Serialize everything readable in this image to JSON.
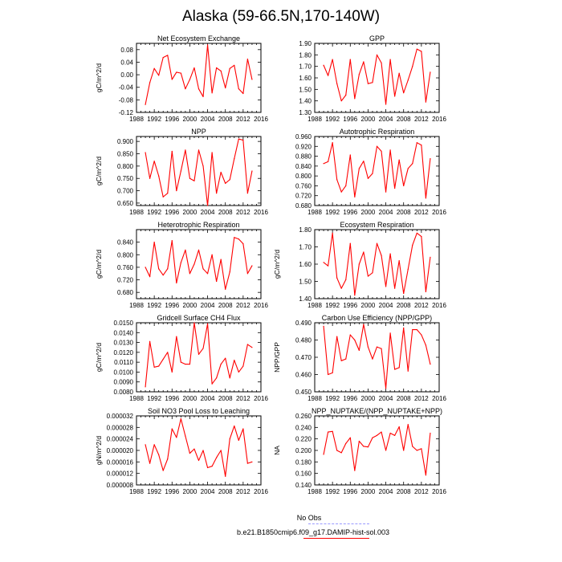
{
  "title": "Alaska (59-66.5N,170-140W)",
  "colors": {
    "model": "#ff0000",
    "obs": "#9999ff",
    "axis": "#000000"
  },
  "legend": {
    "obs_label": "No Obs",
    "model_label": "b.e21.B1850cmip6.f09_g17.DAMIP-hist-sol.003"
  },
  "chart_data": [
    {
      "type": "line",
      "title": "Net Ecosystem Exchange",
      "ylabel": "gC/m^2/d",
      "xlim": [
        1988,
        2016
      ],
      "xticks": [
        1988,
        1992,
        1996,
        2000,
        2004,
        2008,
        2012,
        2016
      ],
      "ylim": [
        -0.12,
        0.1
      ],
      "yticks": [
        "-0.12",
        "-0.08",
        "-0.04",
        "0.00",
        "0.04",
        "0.08"
      ],
      "x": [
        1990,
        1991,
        1992,
        1993,
        1994,
        1995,
        1996,
        1997,
        1998,
        1999,
        2000,
        2001,
        2002,
        2003,
        2004,
        2005,
        2006,
        2007,
        2008,
        2009,
        2010,
        2011,
        2012,
        2013,
        2014
      ],
      "series": [
        {
          "values": [
            -0.095,
            -0.025,
            0.02,
            -0.002,
            0.055,
            0.062,
            -0.015,
            0.008,
            0.005,
            -0.045,
            -0.015,
            0.022,
            -0.045,
            -0.07,
            0.095,
            -0.058,
            0.022,
            0.012,
            -0.042,
            0.02,
            0.03,
            -0.045,
            -0.06,
            0.05,
            -0.015
          ]
        }
      ]
    },
    {
      "type": "line",
      "title": "GPP",
      "ylabel": "",
      "xlim": [
        1988,
        2016
      ],
      "xticks": [
        1988,
        1992,
        1996,
        2000,
        2004,
        2008,
        2012,
        2016
      ],
      "ylim": [
        1.3,
        1.9
      ],
      "yticks": [
        "1.30",
        "1.40",
        "1.50",
        "1.60",
        "1.70",
        "1.80",
        "1.90"
      ],
      "x": [
        1990,
        1991,
        1992,
        1993,
        1994,
        1995,
        1996,
        1997,
        1998,
        1999,
        2000,
        2001,
        2002,
        2003,
        2004,
        2005,
        2006,
        2007,
        2008,
        2009,
        2010,
        2011,
        2012,
        2013,
        2014
      ],
      "series": [
        {
          "values": [
            1.71,
            1.62,
            1.76,
            1.55,
            1.4,
            1.45,
            1.76,
            1.42,
            1.63,
            1.74,
            1.55,
            1.56,
            1.8,
            1.73,
            1.37,
            1.76,
            1.44,
            1.64,
            1.47,
            1.58,
            1.7,
            1.85,
            1.83,
            1.39,
            1.65
          ]
        }
      ]
    },
    {
      "type": "line",
      "title": "NPP",
      "ylabel": "gC/m^2/d",
      "xlim": [
        1988,
        2016
      ],
      "xticks": [
        1988,
        1992,
        1996,
        2000,
        2004,
        2008,
        2012,
        2016
      ],
      "ylim": [
        0.64,
        0.92
      ],
      "yticks": [
        "0.650",
        "0.700",
        "0.750",
        "0.800",
        "0.850",
        "0.900"
      ],
      "x": [
        1990,
        1991,
        1992,
        1993,
        1994,
        1995,
        1996,
        1997,
        1998,
        1999,
        2000,
        2001,
        2002,
        2003,
        2004,
        2005,
        2006,
        2007,
        2008,
        2009,
        2010,
        2011,
        2012,
        2013,
        2014
      ],
      "series": [
        {
          "values": [
            0.855,
            0.75,
            0.82,
            0.76,
            0.675,
            0.69,
            0.86,
            0.7,
            0.78,
            0.865,
            0.75,
            0.74,
            0.865,
            0.8,
            0.64,
            0.855,
            0.69,
            0.775,
            0.73,
            0.745,
            0.83,
            0.91,
            0.905,
            0.69,
            0.78
          ]
        }
      ]
    },
    {
      "type": "line",
      "title": "Autotrophic Respiration",
      "ylabel": "",
      "xlim": [
        1988,
        2016
      ],
      "xticks": [
        1988,
        1992,
        1996,
        2000,
        2004,
        2008,
        2012,
        2016
      ],
      "ylim": [
        0.68,
        0.96
      ],
      "yticks": [
        "0.680",
        "0.720",
        "0.760",
        "0.800",
        "0.840",
        "0.880",
        "0.920",
        "0.960"
      ],
      "x": [
        1990,
        1991,
        1992,
        1993,
        1994,
        1995,
        1996,
        1997,
        1998,
        1999,
        2000,
        2001,
        2002,
        2003,
        2004,
        2005,
        2006,
        2007,
        2008,
        2009,
        2010,
        2011,
        2012,
        2013,
        2014
      ],
      "series": [
        {
          "values": [
            0.85,
            0.858,
            0.935,
            0.785,
            0.735,
            0.76,
            0.885,
            0.715,
            0.83,
            0.86,
            0.79,
            0.81,
            0.92,
            0.9,
            0.735,
            0.905,
            0.75,
            0.865,
            0.76,
            0.83,
            0.85,
            0.935,
            0.925,
            0.71,
            0.87
          ]
        }
      ]
    },
    {
      "type": "line",
      "title": "Heterotrophic Respiration",
      "ylabel": "gC/m^2/d",
      "xlim": [
        1988,
        2016
      ],
      "xticks": [
        1988,
        1992,
        1996,
        2000,
        2004,
        2008,
        2012,
        2016
      ],
      "ylim": [
        0.66,
        0.88
      ],
      "yticks": [
        "0.680",
        "0.720",
        "0.760",
        "0.800",
        "0.840"
      ],
      "x": [
        1990,
        1991,
        1992,
        1993,
        1994,
        1995,
        1996,
        1997,
        1998,
        1999,
        2000,
        2001,
        2002,
        2003,
        2004,
        2005,
        2006,
        2007,
        2008,
        2009,
        2010,
        2011,
        2012,
        2013,
        2014
      ],
      "series": [
        {
          "values": [
            0.76,
            0.73,
            0.84,
            0.755,
            0.735,
            0.755,
            0.845,
            0.71,
            0.775,
            0.815,
            0.74,
            0.77,
            0.815,
            0.755,
            0.74,
            0.8,
            0.715,
            0.785,
            0.69,
            0.745,
            0.855,
            0.85,
            0.835,
            0.74,
            0.765
          ]
        }
      ]
    },
    {
      "type": "line",
      "title": "Ecosystem Respiration",
      "ylabel": "gC/m^2/d",
      "xlim": [
        1988,
        2016
      ],
      "xticks": [
        1988,
        1992,
        1996,
        2000,
        2004,
        2008,
        2012,
        2016
      ],
      "ylim": [
        1.4,
        1.8
      ],
      "yticks": [
        "1.40",
        "1.50",
        "1.60",
        "1.70",
        "1.80"
      ],
      "x": [
        1990,
        1991,
        1992,
        1993,
        1994,
        1995,
        1996,
        1997,
        1998,
        1999,
        2000,
        2001,
        2002,
        2003,
        2004,
        2005,
        2006,
        2007,
        2008,
        2009,
        2010,
        2011,
        2012,
        2013,
        2014
      ],
      "series": [
        {
          "values": [
            1.61,
            1.59,
            1.78,
            1.52,
            1.46,
            1.51,
            1.72,
            1.42,
            1.6,
            1.67,
            1.53,
            1.55,
            1.72,
            1.65,
            1.47,
            1.66,
            1.46,
            1.62,
            1.43,
            1.57,
            1.71,
            1.78,
            1.76,
            1.44,
            1.64
          ]
        }
      ]
    },
    {
      "type": "line",
      "title": "Gridcell Surface CH4 Flux",
      "ylabel": "gC/m^2/d",
      "xlim": [
        1988,
        2016
      ],
      "xticks": [
        1988,
        1992,
        1996,
        2000,
        2004,
        2008,
        2012,
        2016
      ],
      "ylim": [
        0.008,
        0.015
      ],
      "yticks": [
        "0.0080",
        "0.0090",
        "0.0100",
        "0.0110",
        "0.0120",
        "0.0130",
        "0.0140",
        "0.0150"
      ],
      "x": [
        1990,
        1991,
        1992,
        1993,
        1994,
        1995,
        1996,
        1997,
        1998,
        1999,
        2000,
        2001,
        2002,
        2003,
        2004,
        2005,
        2006,
        2007,
        2008,
        2009,
        2010,
        2011,
        2012,
        2013,
        2014
      ],
      "series": [
        {
          "values": [
            0.0085,
            0.0131,
            0.0105,
            0.0106,
            0.0113,
            0.012,
            0.01,
            0.0136,
            0.011,
            0.0108,
            0.0108,
            0.015,
            0.0118,
            0.0124,
            0.0149,
            0.0088,
            0.0094,
            0.0108,
            0.0114,
            0.0094,
            0.0112,
            0.01,
            0.0106,
            0.0128,
            0.0125
          ]
        }
      ]
    },
    {
      "type": "line",
      "title": "Carbon Use Efficiency (NPP/GPP)",
      "ylabel": "NPP/GPP",
      "xlim": [
        1988,
        2016
      ],
      "xticks": [
        1988,
        1992,
        1996,
        2000,
        2004,
        2008,
        2012,
        2016
      ],
      "ylim": [
        0.45,
        0.49
      ],
      "yticks": [
        "0.450",
        "0.460",
        "0.470",
        "0.480",
        "0.490"
      ],
      "x": [
        1990,
        1991,
        1992,
        1993,
        1994,
        1995,
        1996,
        1997,
        1998,
        1999,
        2000,
        2001,
        2002,
        2003,
        2004,
        2005,
        2006,
        2007,
        2008,
        2009,
        2010,
        2011,
        2012,
        2013,
        2014
      ],
      "series": [
        {
          "values": [
            0.488,
            0.46,
            0.461,
            0.482,
            0.468,
            0.469,
            0.483,
            0.48,
            0.474,
            0.489,
            0.476,
            0.469,
            0.476,
            0.475,
            0.452,
            0.484,
            0.463,
            0.464,
            0.487,
            0.462,
            0.486,
            0.486,
            0.483,
            0.477,
            0.466
          ]
        }
      ]
    },
    {
      "type": "line",
      "title": "Soil NO3 Pool Loss to Leaching",
      "ylabel": "gN/m^2/d",
      "xlim": [
        1988,
        2016
      ],
      "xticks": [
        1988,
        1992,
        1996,
        2000,
        2004,
        2008,
        2012,
        2016
      ],
      "ylim": [
        8e-06,
        3.2e-05
      ],
      "yticks": [
        "0.000008",
        "0.000012",
        "0.000016",
        "0.000020",
        "0.000024",
        "0.000028",
        "0.000032"
      ],
      "x": [
        1990,
        1991,
        1992,
        1993,
        1994,
        1995,
        1996,
        1997,
        1998,
        1999,
        2000,
        2001,
        2002,
        2003,
        2004,
        2005,
        2006,
        2007,
        2008,
        2009,
        2010,
        2011,
        2012,
        2013,
        2014
      ],
      "series": [
        {
          "values": [
            2.2e-05,
            1.55e-05,
            2.2e-05,
            1.85e-05,
            1.3e-05,
            1.7e-05,
            2.75e-05,
            2.45e-05,
            3.1e-05,
            2.5e-05,
            1.9e-05,
            2.05e-05,
            1.65e-05,
            2e-05,
            1.4e-05,
            1.45e-05,
            1.75e-05,
            2e-05,
            1.1e-05,
            2.4e-05,
            2.85e-05,
            2.35e-05,
            2.75e-05,
            1.55e-05,
            1.6e-05
          ]
        }
      ]
    },
    {
      "type": "line",
      "title": "NPP_NUPTAKE/(NPP_NUPTAKE+NPP)",
      "ylabel": "NA",
      "xlim": [
        1988,
        2016
      ],
      "xticks": [
        1988,
        1992,
        1996,
        2000,
        2004,
        2008,
        2012,
        2016
      ],
      "ylim": [
        0.14,
        0.26
      ],
      "yticks": [
        "0.140",
        "0.160",
        "0.180",
        "0.200",
        "0.220",
        "0.240",
        "0.260"
      ],
      "x": [
        1990,
        1991,
        1992,
        1993,
        1994,
        1995,
        1996,
        1997,
        1998,
        1999,
        2000,
        2001,
        2002,
        2003,
        2004,
        2005,
        2006,
        2007,
        2008,
        2009,
        2010,
        2011,
        2012,
        2013,
        2014
      ],
      "series": [
        {
          "values": [
            0.193,
            0.232,
            0.233,
            0.2,
            0.196,
            0.212,
            0.222,
            0.165,
            0.216,
            0.207,
            0.206,
            0.222,
            0.226,
            0.232,
            0.2,
            0.23,
            0.226,
            0.241,
            0.2,
            0.245,
            0.207,
            0.2,
            0.203,
            0.157,
            0.23
          ]
        }
      ]
    }
  ]
}
